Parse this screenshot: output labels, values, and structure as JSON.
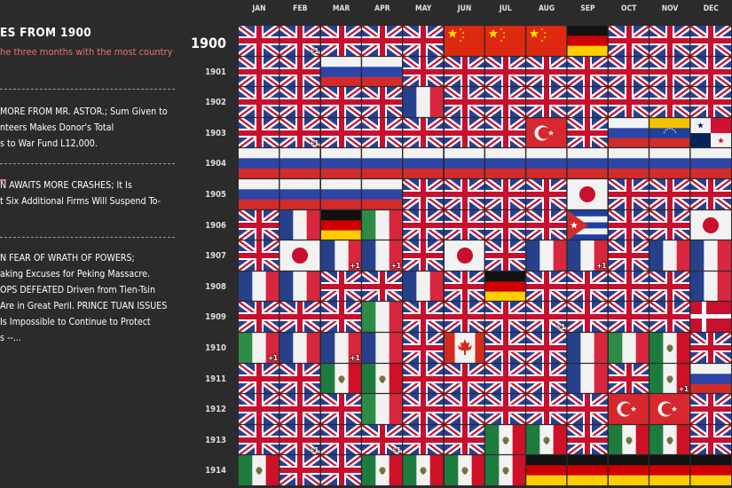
{
  "panel": {
    "title": "ES FROM 1900",
    "subtitle": "he three months with the most country",
    "headlines": [
      [
        "MORE FROM MR. ASTOR.; Sum Given to",
        "nteers Makes Donor's Total",
        "s to War Fund L12,000."
      ],
      [
        "N AWAITS MORE CRASHES; It Is",
        "t Six Additional Firms Will Suspend To-"
      ],
      [
        "N FEAR OF WRATH OF POWERS;",
        "aking Excuses for Peking Massacre.",
        "OPS DEFEATED Driven from Tien-Tsin",
        "Are in Great Peril. PRINCE TUAN ISSUES",
        " Is Impossible to Continue to Protect",
        "s --..."
      ]
    ]
  },
  "colors": {
    "background": "#2b2b2b",
    "subtitle": "#e8706e"
  },
  "chart_data": {
    "type": "table",
    "title": "",
    "months": [
      "JAN",
      "FEB",
      "MAR",
      "APR",
      "MAY",
      "JUN",
      "JUL",
      "AUG",
      "SEP",
      "OCT",
      "NOV",
      "DEC"
    ],
    "rows": [
      {
        "year": "1900",
        "cells": [
          "uk",
          "uk+1",
          "uk",
          "uk",
          "uk",
          "china",
          "china",
          "china",
          "germany",
          "uk",
          "uk",
          "uk"
        ]
      },
      {
        "year": "1901",
        "cells": [
          "uk",
          "uk",
          "russia",
          "russia",
          "uk",
          "uk",
          "uk",
          "uk",
          "uk",
          "uk",
          "uk",
          "uk"
        ]
      },
      {
        "year": "1902",
        "cells": [
          "uk",
          "uk",
          "uk",
          "uk",
          "france",
          "uk",
          "uk",
          "uk",
          "uk",
          "uk",
          "uk",
          "uk"
        ]
      },
      {
        "year": "1903",
        "cells": [
          "uk",
          "uk+1",
          "uk",
          "uk",
          "uk",
          "uk",
          "uk",
          "turkey",
          "uk",
          "russia",
          "venezuela",
          "panama"
        ]
      },
      {
        "year": "1904",
        "cells": [
          "russia",
          "russia",
          "russia",
          "russia",
          "russia",
          "russia",
          "russia",
          "russia",
          "russia",
          "russia",
          "russia",
          "russia"
        ]
      },
      {
        "year": "1905",
        "cells": [
          "russia",
          "russia",
          "russia",
          "russia",
          "uk",
          "uk",
          "uk",
          "uk",
          "japan",
          "uk",
          "uk",
          "uk"
        ]
      },
      {
        "year": "1906",
        "cells": [
          "uk",
          "france",
          "germany",
          "italy",
          "uk",
          "uk",
          "uk",
          "uk",
          "cuba",
          "uk",
          "uk",
          "japan"
        ]
      },
      {
        "year": "1907",
        "cells": [
          "uk",
          "japan",
          "france+1",
          "france+1",
          "uk",
          "japan",
          "uk",
          "france",
          "france+1",
          "uk",
          "france",
          "france"
        ]
      },
      {
        "year": "1908",
        "cells": [
          "france",
          "france",
          "uk",
          "uk",
          "france",
          "uk",
          "germany",
          "uk",
          "uk",
          "uk",
          "uk",
          "france"
        ]
      },
      {
        "year": "1909",
        "cells": [
          "uk",
          "uk",
          "uk",
          "italy",
          "uk",
          "uk",
          "uk",
          "uk+1",
          "uk",
          "uk",
          "uk",
          "denmark"
        ]
      },
      {
        "year": "1910",
        "cells": [
          "italy+1",
          "france",
          "france+1",
          "france",
          "uk",
          "canada",
          "uk",
          "uk",
          "france",
          "italy",
          "mexico",
          "uk"
        ]
      },
      {
        "year": "1911",
        "cells": [
          "uk",
          "uk",
          "mexico",
          "mexico",
          "uk",
          "uk",
          "uk",
          "uk",
          "france",
          "uk",
          "mexico+1",
          "russia"
        ]
      },
      {
        "year": "1912",
        "cells": [
          "uk",
          "uk",
          "uk",
          "italy",
          "uk",
          "uk",
          "uk",
          "uk",
          "uk",
          "turkey",
          "turkey",
          "uk"
        ]
      },
      {
        "year": "1913",
        "cells": [
          "uk",
          "uk+1",
          "uk",
          "uk+1",
          "uk",
          "uk",
          "mexico",
          "mexico",
          "uk",
          "mexico",
          "mexico",
          "uk"
        ]
      },
      {
        "year": "1914",
        "cells": [
          "mexico",
          "uk",
          "uk",
          "mexico",
          "mexico",
          "mexico",
          "mexico",
          "germany",
          "germany",
          "germany",
          "germany",
          "germany"
        ]
      }
    ]
  }
}
